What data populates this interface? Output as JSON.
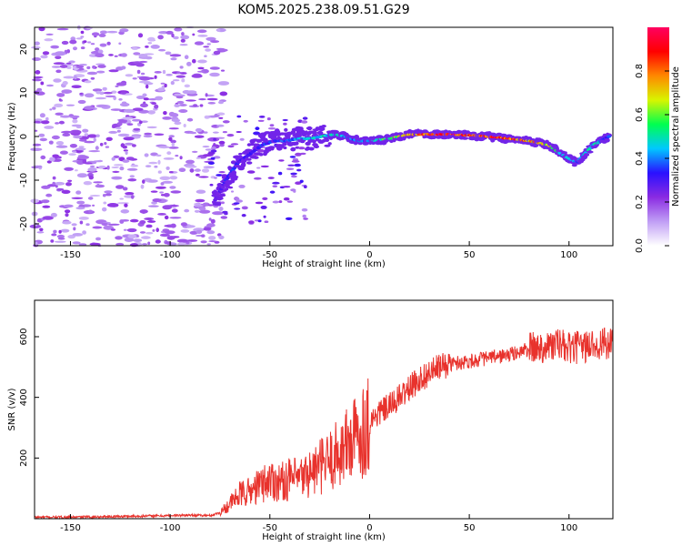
{
  "title": "KOM5.2025.238.09.51.G29",
  "chart_data": [
    {
      "type": "heatmap",
      "xlabel": "Height of straight line (km)",
      "ylabel": "Frequency (Hz)",
      "xlim": [
        -168,
        122
      ],
      "ylim": [
        -25,
        25
      ],
      "xticks": [
        -150,
        -100,
        -50,
        0,
        50,
        100
      ],
      "xtick_labels": [
        "-150",
        "-100",
        "-50",
        "0",
        "50",
        "100"
      ],
      "yticks": [
        -20,
        -10,
        0,
        10,
        20
      ],
      "ytick_labels": [
        "-20",
        "-10",
        "0",
        "10",
        "20"
      ],
      "colorbar": {
        "label": "Normalized spectral amplitude",
        "range": [
          0,
          1
        ],
        "ticks": [
          0.0,
          0.2,
          0.4,
          0.6,
          0.8
        ],
        "tick_labels": [
          "0.0",
          "0.2",
          "0.4",
          "0.6",
          "0.8"
        ],
        "colors": [
          "#ffffff",
          "#c09ef5",
          "#8a2be2",
          "#2a10ff",
          "#00c8ff",
          "#00ff50",
          "#d8f500",
          "#ff8800",
          "#ff0000",
          "#ff0060"
        ]
      },
      "ridge": {
        "x": [
          -78,
          -72,
          -66,
          -60,
          -54,
          -48,
          -42,
          -36,
          -30,
          -24,
          -18,
          -12,
          -6,
          0,
          10,
          20,
          30,
          40,
          50,
          60,
          70,
          80,
          90,
          96,
          100,
          104,
          108,
          112,
          116,
          120
        ],
        "y": [
          -15,
          -10,
          -6,
          -4,
          -2,
          -1,
          -1,
          -0.5,
          -0.5,
          0,
          0.5,
          0,
          -1,
          -1,
          -0.5,
          0.5,
          0.5,
          0.5,
          0.3,
          0,
          -0.5,
          -1,
          -2,
          -4,
          -5,
          -6,
          -4,
          -2,
          -1,
          0
        ],
        "amplitude": [
          0.25,
          0.35,
          0.35,
          0.3,
          0.35,
          0.35,
          0.4,
          0.45,
          0.45,
          0.5,
          0.5,
          0.45,
          0.4,
          0.45,
          0.6,
          0.75,
          0.9,
          0.95,
          0.85,
          0.9,
          0.85,
          0.8,
          0.7,
          0.55,
          0.45,
          0.4,
          0.45,
          0.5,
          0.45,
          0.35
        ]
      }
    },
    {
      "type": "line",
      "xlabel": "Height of straight line (km)",
      "ylabel": "SNR (v/v)",
      "xlim": [
        -168,
        122
      ],
      "ylim": [
        0,
        720
      ],
      "xticks": [
        -150,
        -100,
        -50,
        0,
        50,
        100
      ],
      "xtick_labels": [
        "-150",
        "-100",
        "-50",
        "0",
        "50",
        "100"
      ],
      "yticks": [
        200,
        400,
        600
      ],
      "ytick_labels": [
        "200",
        "400",
        "600"
      ],
      "color": "#e8322c",
      "series": [
        {
          "name": "SNR",
          "x": [
            -168,
            -150,
            -120,
            -100,
            -90,
            -80,
            -75,
            -70,
            -65,
            -60,
            -55,
            -50,
            -45,
            -40,
            -35,
            -30,
            -25,
            -20,
            -15,
            -10,
            -5,
            0,
            5,
            10,
            15,
            20,
            25,
            30,
            35,
            40,
            50,
            60,
            70,
            80,
            90,
            95,
            100,
            105,
            110,
            115,
            122
          ],
          "y": [
            5,
            5,
            8,
            10,
            12,
            10,
            20,
            50,
            80,
            90,
            110,
            130,
            120,
            130,
            130,
            150,
            170,
            190,
            220,
            250,
            280,
            320,
            350,
            370,
            400,
            430,
            460,
            480,
            500,
            510,
            520,
            530,
            540,
            560,
            570,
            575,
            560,
            565,
            570,
            580,
            570
          ]
        }
      ]
    }
  ]
}
